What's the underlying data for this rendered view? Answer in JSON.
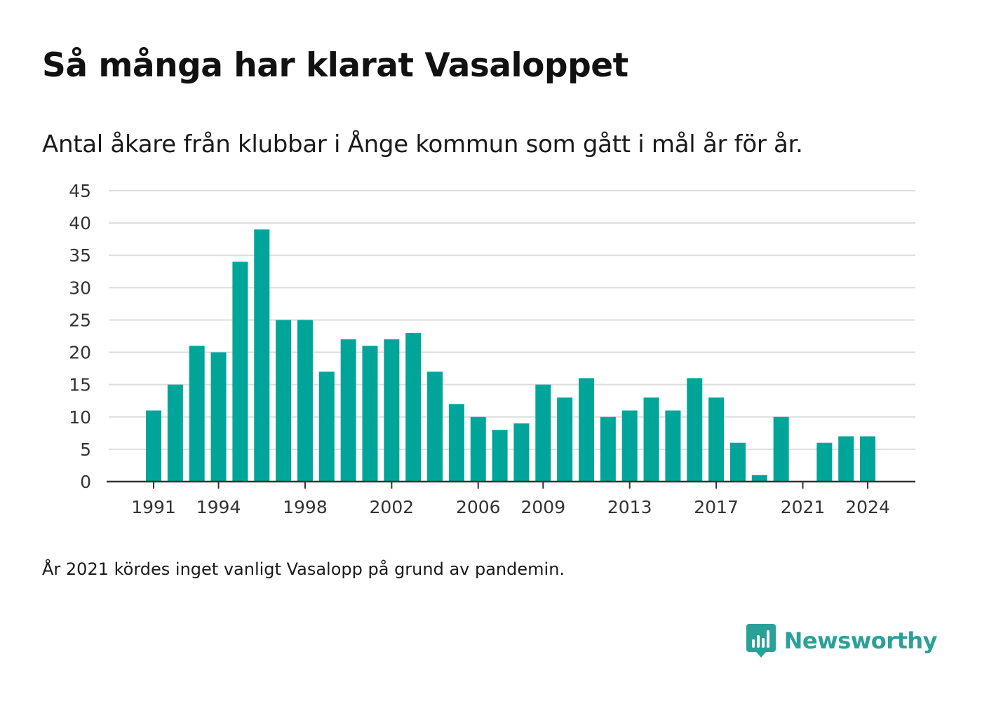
{
  "title": "Så många har klarat Vasaloppet",
  "subtitle": "Antal åkare från klubbar i Ånge kommun som gått i mål år för år.",
  "note": "År 2021 kördes inget vanligt Vasalopp på grund av pandemin.",
  "brand": {
    "name": "Newsworthy",
    "icon": "newsworthy-logo-icon",
    "color": "#2aa198"
  },
  "colors": {
    "bar": "#00a59a",
    "grid": "#dddddd",
    "axis": "#333333"
  },
  "chart_data": {
    "type": "bar",
    "title": "Så många har klarat Vasaloppet",
    "subtitle": "Antal åkare från klubbar i Ånge kommun som gått i mål år för år.",
    "xlabel": "",
    "ylabel": "",
    "ylim": [
      0,
      45
    ],
    "yticks": [
      0,
      5,
      10,
      15,
      20,
      25,
      30,
      35,
      40,
      45
    ],
    "xtick_labels": [
      "1991",
      "1994",
      "1998",
      "2002",
      "2006",
      "2009",
      "2013",
      "2017",
      "2021",
      "2024"
    ],
    "grid": true,
    "legend": "none",
    "categories": [
      1991,
      1992,
      1993,
      1994,
      1995,
      1996,
      1997,
      1998,
      1999,
      2000,
      2001,
      2002,
      2003,
      2004,
      2005,
      2006,
      2007,
      2008,
      2009,
      2010,
      2011,
      2012,
      2013,
      2014,
      2015,
      2016,
      2017,
      2018,
      2019,
      2020,
      2021,
      2022,
      2023,
      2024
    ],
    "values": [
      11,
      15,
      21,
      20,
      34,
      39,
      25,
      25,
      17,
      22,
      21,
      22,
      23,
      17,
      12,
      10,
      8,
      9,
      15,
      13,
      16,
      10,
      11,
      13,
      11,
      16,
      13,
      6,
      1,
      10,
      0,
      6,
      7,
      7
    ]
  }
}
